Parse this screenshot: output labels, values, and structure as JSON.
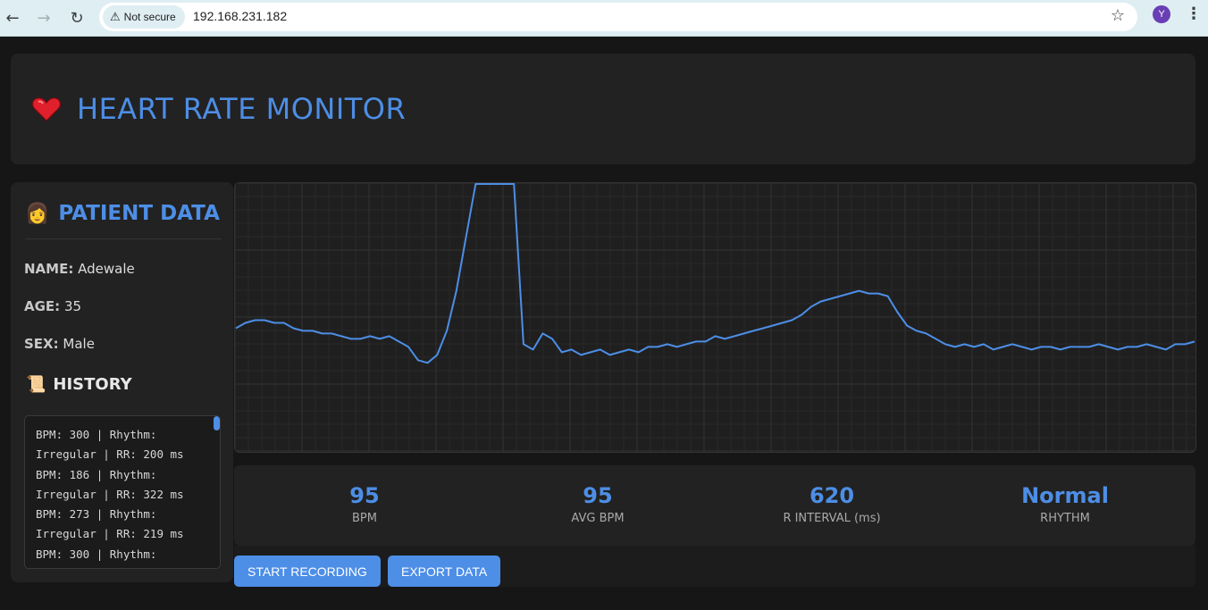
{
  "browser": {
    "security_label": "Not secure",
    "url": "192.168.231.182",
    "profile_initial": "Y"
  },
  "app": {
    "title": "HEART RATE MONITOR",
    "accent_color": "#4d8ee6"
  },
  "patient": {
    "heading": "PATIENT DATA",
    "fields": [
      {
        "key": "NAME:",
        "value": "Adewale"
      },
      {
        "key": "AGE:",
        "value": "35"
      },
      {
        "key": "SEX:",
        "value": "Male"
      }
    ]
  },
  "history": {
    "heading": "HISTORY",
    "entries": [
      "BPM: 300 | Rhythm: Irregular | RR: 200 ms",
      "BPM: 186 | Rhythm: Irregular | RR: 322 ms",
      "BPM: 273 | Rhythm: Irregular | RR: 219 ms",
      "BPM: 300 | Rhythm:"
    ]
  },
  "stats": [
    {
      "value": "95",
      "label": "BPM"
    },
    {
      "value": "95",
      "label": "AVG BPM"
    },
    {
      "value": "620",
      "label": "R INTERVAL (ms)"
    },
    {
      "value": "Normal",
      "label": "RHYTHM"
    }
  ],
  "actions": {
    "start_label": "START RECORDING",
    "export_label": "EXPORT DATA"
  },
  "chart_data": {
    "type": "line",
    "title": "",
    "xlabel": "",
    "ylabel": "",
    "grid": true,
    "line_color": "#4d8ee6",
    "ylim": [
      0,
      100
    ],
    "x": [
      0,
      1,
      2,
      3,
      4,
      5,
      6,
      7,
      8,
      9,
      10,
      11,
      12,
      13,
      14,
      15,
      16,
      17,
      18,
      19,
      20,
      21,
      22,
      23,
      24,
      25,
      26,
      27,
      28,
      29,
      30,
      31,
      32,
      33,
      34,
      35,
      36,
      37,
      38,
      39,
      40,
      41,
      42,
      43,
      44,
      45,
      46,
      47,
      48,
      49,
      50,
      51,
      52,
      53,
      54,
      55,
      56,
      57,
      58,
      59,
      60,
      61,
      62,
      63,
      64,
      65,
      66,
      67,
      68,
      69,
      70,
      71,
      72,
      73,
      74,
      75,
      76,
      77,
      78,
      79,
      80,
      81,
      82,
      83,
      84,
      85,
      86,
      87,
      88,
      89,
      90,
      91,
      92,
      93,
      94,
      95,
      96,
      97,
      98,
      99,
      100
    ],
    "y": [
      46,
      48,
      49,
      49,
      48,
      48,
      46,
      45,
      45,
      44,
      44,
      43,
      42,
      42,
      43,
      42,
      43,
      41,
      39,
      34,
      33,
      36,
      45,
      60,
      80,
      100,
      100,
      100,
      100,
      100,
      40,
      38,
      44,
      42,
      37,
      38,
      36,
      37,
      38,
      36,
      37,
      38,
      37,
      39,
      39,
      40,
      39,
      40,
      41,
      41,
      43,
      42,
      43,
      44,
      45,
      46,
      47,
      48,
      49,
      51,
      54,
      56,
      57,
      58,
      59,
      60,
      59,
      59,
      58,
      52,
      47,
      45,
      44,
      42,
      40,
      39,
      40,
      39,
      40,
      38,
      39,
      40,
      39,
      38,
      39,
      39,
      38,
      39,
      39,
      39,
      40,
      39,
      38,
      39,
      39,
      40,
      39,
      38,
      40,
      40,
      41
    ]
  }
}
